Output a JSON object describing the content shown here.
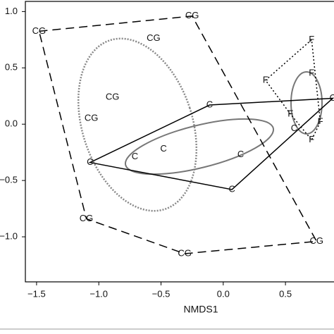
{
  "chart_data": {
    "type": "scatter",
    "xlabel": "NMDS1",
    "xlim": [
      -1.59,
      0.89
    ],
    "ylim": [
      -1.4,
      1.09
    ],
    "xticks": [
      -1.5,
      -1.0,
      -0.5,
      0.0,
      0.5
    ],
    "xtick_labels": [
      "−1.5",
      "−1.0",
      "−0.5",
      "0.0",
      "0.5"
    ],
    "yticks": [
      {
        "value": -1.0,
        "label": "−1.0"
      },
      {
        "value": -0.5,
        "label": "−0.5"
      },
      {
        "value": 0.0,
        "label": "0.0"
      },
      {
        "value": 0.5,
        "label": "0.5"
      },
      {
        "value": 1.0,
        "label": "1.0"
      }
    ],
    "series": [
      {
        "name": "CG",
        "color": "#000000",
        "linestyle": "dashed",
        "x": [
          -1.48,
          -0.25,
          -0.56,
          -0.89,
          -1.06,
          -1.1,
          -0.31,
          0.75
        ],
        "y": [
          0.825,
          0.96,
          0.76,
          0.24,
          0.05,
          -0.84,
          -1.15,
          -1.04
        ]
      },
      {
        "name": "C",
        "color": "#000000",
        "linestyle": "solid",
        "x": [
          -1.07,
          -0.11,
          -0.48,
          -0.71,
          0.14,
          0.07,
          0.57,
          0.88
        ],
        "y": [
          -0.34,
          0.17,
          -0.22,
          -0.29,
          -0.27,
          -0.58,
          -0.04,
          0.23
        ]
      },
      {
        "name": "F",
        "color": "#000000",
        "linestyle": "dotted",
        "x": [
          0.71,
          0.34,
          0.71,
          0.54,
          0.78,
          0.71
        ],
        "y": [
          0.75,
          0.39,
          0.45,
          0.09,
          0.02,
          -0.14
        ]
      }
    ]
  }
}
